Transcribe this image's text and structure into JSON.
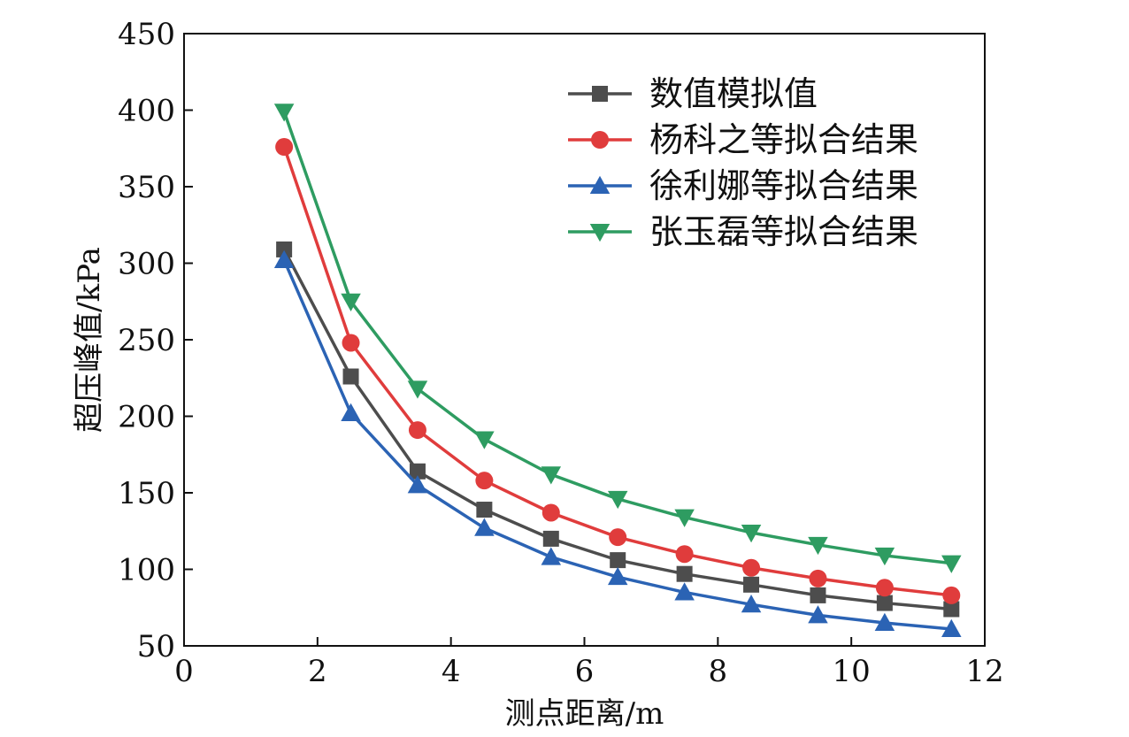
{
  "chart_data": {
    "type": "line",
    "title": "",
    "xlabel": "测点距离/m",
    "ylabel": "超压峰值/kPa",
    "xlim": [
      0,
      12
    ],
    "ylim": [
      50,
      450
    ],
    "x_ticks": [
      "0",
      "2",
      "4",
      "6",
      "8",
      "10",
      "12"
    ],
    "y_ticks": [
      "50",
      "100",
      "150",
      "200",
      "250",
      "300",
      "350",
      "400",
      "450"
    ],
    "x": [
      1.5,
      2.5,
      3.5,
      4.5,
      5.5,
      6.5,
      7.5,
      8.5,
      9.5,
      10.5,
      11.5
    ],
    "grid": false,
    "legend_position": "top-right",
    "series": [
      {
        "name": "数值模拟值",
        "color": "#4d4d4d",
        "marker": "square",
        "values": [
          309,
          226,
          164,
          139,
          120,
          106,
          97,
          90,
          83,
          78,
          74
        ]
      },
      {
        "name": "杨科之等拟合结果",
        "color": "#e03c3c",
        "marker": "circle",
        "values": [
          376,
          248,
          191,
          158,
          137,
          121,
          110,
          101,
          94,
          88,
          83
        ]
      },
      {
        "name": "徐利娜等拟合结果",
        "color": "#2b63b4",
        "marker": "triangle-up",
        "values": [
          302,
          202,
          155,
          127,
          108,
          95,
          85,
          77,
          70,
          65,
          61
        ]
      },
      {
        "name": "张玉磊等拟合结果",
        "color": "#2e9c61",
        "marker": "triangle-down",
        "values": [
          399,
          275,
          218,
          185,
          162,
          146,
          134,
          124,
          116,
          109,
          104
        ]
      }
    ]
  }
}
